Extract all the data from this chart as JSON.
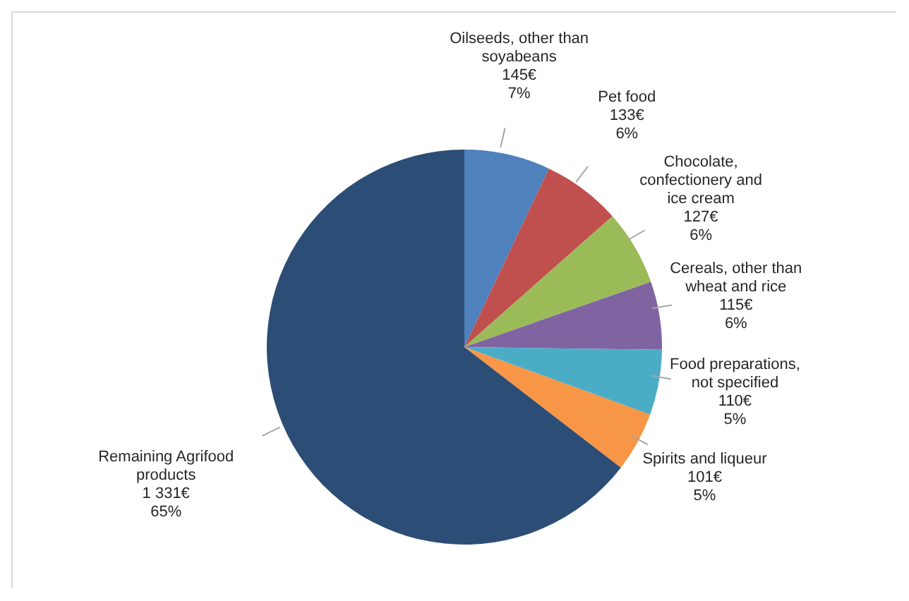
{
  "chart_data": {
    "type": "pie",
    "categories": [
      "Oilseeds, other than soyabeans",
      "Pet food",
      "Chocolate, confectionery and ice cream",
      "Cereals, other than wheat and rice",
      "Food preparations, not specified",
      "Spirits and liqueur",
      "Remaining Agrifood products"
    ],
    "values": [
      145,
      133,
      127,
      115,
      110,
      101,
      1331
    ],
    "colors": [
      "#4f81bd",
      "#c0504d",
      "#9bbb59",
      "#8064a2",
      "#4bacc6",
      "#f79646",
      "#2c4d75"
    ],
    "value_labels": [
      "145€\n7%",
      "133€\n6%",
      "127€\n6%",
      "115€\n6%",
      "110€\n5%",
      "101€\n5%",
      "1 331€\n65%"
    ]
  }
}
